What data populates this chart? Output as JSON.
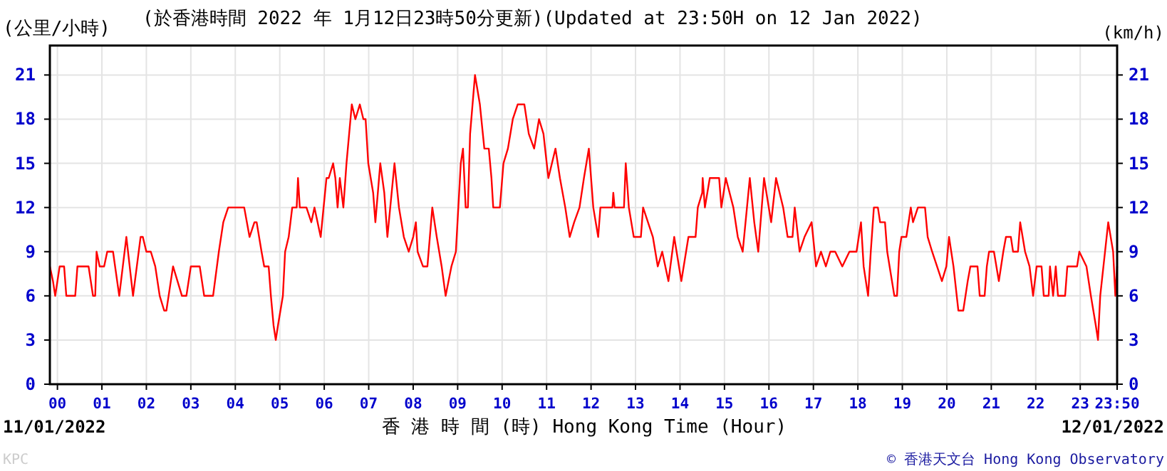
{
  "chart_data": {
    "type": "line",
    "title": "(於香港時間 2022 年 1月12日23時50分更新)(Updated at 23:50H on 12 Jan 2022)",
    "ylabel": "(公里/小時)",
    "y2label": "(km/h)",
    "xlabel": "香 港 時 間 (時)  Hong Kong Time (Hour)",
    "annotations": [
      "11/01/2022",
      "12/01/2022",
      "KPC",
      "© 香港天文台 Hong Kong Observatory"
    ],
    "xlim": [
      -0.17,
      23.83
    ],
    "xticks": [
      {
        "value": 0,
        "label": "00"
      },
      {
        "value": 1,
        "label": "01"
      },
      {
        "value": 2,
        "label": "02"
      },
      {
        "value": 3,
        "label": "03"
      },
      {
        "value": 4,
        "label": "04"
      },
      {
        "value": 5,
        "label": "05"
      },
      {
        "value": 6,
        "label": "06"
      },
      {
        "value": 7,
        "label": "07"
      },
      {
        "value": 8,
        "label": "08"
      },
      {
        "value": 9,
        "label": "09"
      },
      {
        "value": 10,
        "label": "10"
      },
      {
        "value": 11,
        "label": "11"
      },
      {
        "value": 12,
        "label": "12"
      },
      {
        "value": 13,
        "label": "13"
      },
      {
        "value": 14,
        "label": "14"
      },
      {
        "value": 15,
        "label": "15"
      },
      {
        "value": 16,
        "label": "16"
      },
      {
        "value": 17,
        "label": "17"
      },
      {
        "value": 18,
        "label": "18"
      },
      {
        "value": 19,
        "label": "19"
      },
      {
        "value": 20,
        "label": "20"
      },
      {
        "value": 21,
        "label": "21"
      },
      {
        "value": 22,
        "label": "22"
      },
      {
        "value": 23,
        "label": "23"
      },
      {
        "value": 23.83,
        "label": "23:50"
      }
    ],
    "ylim": [
      0,
      23
    ],
    "yticks": [
      0,
      3,
      6,
      9,
      12,
      15,
      18,
      21
    ],
    "y2lim": [
      0,
      23
    ],
    "y2ticks": [
      0,
      3,
      6,
      9,
      12,
      15,
      18,
      21
    ],
    "grid": true,
    "series": [
      {
        "color": "#ff0000",
        "x": [
          -0.17,
          -0.1,
          -0.05,
          0,
          0.05,
          0.15,
          0.2,
          0.4,
          0.45,
          0.7,
          0.75,
          0.8,
          0.85,
          0.88,
          0.95,
          1.05,
          1.12,
          1.25,
          1.39,
          1.55,
          1.7,
          1.87,
          1.92,
          2.0,
          2.1,
          2.2,
          2.3,
          2.4,
          2.45,
          2.5,
          2.6,
          2.8,
          2.9,
          3.0,
          3.2,
          3.3,
          3.5,
          3.63,
          3.73,
          3.84,
          4.2,
          4.32,
          4.43,
          4.48,
          4.59,
          4.65,
          4.75,
          4.8,
          4.86,
          4.91,
          4.96,
          5.07,
          5.12,
          5.2,
          5.28,
          5.38,
          5.41,
          5.45,
          5.6,
          5.71,
          5.78,
          5.92,
          6.05,
          6.1,
          6.2,
          6.25,
          6.3,
          6.35,
          6.43,
          6.5,
          6.62,
          6.7,
          6.8,
          6.88,
          6.93,
          6.99,
          7.1,
          7.15,
          7.26,
          7.35,
          7.42,
          7.58,
          7.68,
          7.79,
          7.9,
          8.0,
          8.06,
          8.1,
          8.22,
          8.32,
          8.43,
          8.53,
          8.64,
          8.73,
          8.86,
          8.96,
          9.07,
          9.12,
          9.18,
          9.23,
          9.28,
          9.39,
          9.5,
          9.6,
          9.7,
          9.76,
          9.8,
          9.95,
          10.03,
          10.13,
          10.24,
          10.35,
          10.5,
          10.6,
          10.72,
          10.83,
          10.93,
          11.04,
          11.2,
          11.3,
          11.42,
          11.52,
          11.62,
          11.74,
          11.84,
          11.95,
          12.05,
          12.16,
          12.21,
          12.27,
          12.48,
          12.5,
          12.53,
          12.74,
          12.78,
          12.85,
          12.96,
          13.12,
          13.17,
          13.28,
          13.39,
          13.5,
          13.6,
          13.74,
          13.87,
          14.03,
          14.19,
          14.35,
          14.4,
          14.5,
          14.51,
          14.56,
          14.67,
          14.88,
          14.93,
          15.03,
          15.2,
          15.3,
          15.41,
          15.57,
          15.67,
          15.76,
          15.89,
          16.05,
          16.16,
          16.32,
          16.42,
          16.53,
          16.58,
          16.69,
          16.8,
          16.96,
          17.06,
          17.17,
          17.28,
          17.38,
          17.49,
          17.65,
          17.81,
          17.97,
          18.07,
          18.13,
          18.23,
          18.29,
          18.36,
          18.45,
          18.5,
          18.61,
          18.66,
          18.82,
          18.88,
          18.93,
          18.98,
          19.09,
          19.19,
          19.24,
          19.35,
          19.51,
          19.57,
          19.67,
          19.78,
          19.89,
          19.99,
          20.05,
          20.1,
          20.15,
          20.26,
          20.37,
          20.47,
          20.53,
          20.69,
          20.74,
          20.85,
          20.9,
          20.95,
          21.06,
          21.17,
          21.27,
          21.33,
          21.44,
          21.49,
          21.6,
          21.65,
          21.76,
          21.86,
          21.94,
          22.02,
          22.13,
          22.18,
          22.29,
          22.32,
          22.39,
          22.45,
          22.5,
          22.66,
          22.71,
          22.93,
          22.98,
          23.14,
          23.24,
          23.35,
          23.4,
          23.45,
          23.63,
          23.74,
          23.79,
          23.83
        ],
        "values": [
          8,
          7,
          6,
          7,
          8,
          8,
          6,
          6,
          8,
          8,
          7,
          6,
          6,
          9,
          8,
          8,
          9,
          9,
          6,
          10,
          6,
          10,
          10,
          9,
          9,
          8,
          6,
          5,
          5,
          6,
          8,
          6,
          6,
          8,
          8,
          6,
          6,
          9,
          11,
          12,
          12,
          10,
          11,
          11,
          9,
          8,
          8,
          6,
          4,
          3,
          4,
          6,
          9,
          10,
          12,
          12,
          14,
          12,
          12,
          11,
          12,
          10,
          14,
          14,
          15,
          14,
          12,
          14,
          12,
          15,
          19,
          18,
          19,
          18,
          18,
          15,
          13,
          11,
          15,
          13,
          10,
          15,
          12,
          10,
          9,
          10,
          11,
          9,
          8,
          8,
          12,
          10,
          8,
          6,
          8,
          9,
          15,
          16,
          12,
          12,
          17,
          21,
          19,
          16,
          16,
          14,
          12,
          12,
          15,
          16,
          18,
          19,
          19,
          17,
          16,
          18,
          17,
          14,
          16,
          14,
          12,
          10,
          11,
          12,
          14,
          16,
          12,
          10,
          12,
          12,
          12,
          13,
          12,
          12,
          15,
          12,
          10,
          10,
          12,
          11,
          10,
          8,
          9,
          7,
          10,
          7,
          10,
          10,
          12,
          13,
          14,
          12,
          14,
          14,
          12,
          14,
          12,
          10,
          9,
          14,
          11,
          9,
          14,
          11,
          14,
          12,
          10,
          10,
          12,
          9,
          10,
          11,
          8,
          9,
          8,
          9,
          9,
          8,
          9,
          9,
          11,
          8,
          6,
          9,
          12,
          12,
          11,
          11,
          9,
          6,
          6,
          9,
          10,
          10,
          12,
          11,
          12,
          12,
          10,
          9,
          8,
          7,
          8,
          10,
          9,
          8,
          5,
          5,
          7,
          8,
          8,
          6,
          6,
          8,
          9,
          9,
          7,
          9,
          10,
          10,
          9,
          9,
          11,
          9,
          8,
          6,
          8,
          8,
          6,
          6,
          8,
          6,
          8,
          6,
          6,
          8,
          8,
          9,
          8,
          6,
          4,
          3,
          6,
          11,
          9,
          6,
          8
        ]
      }
    ]
  }
}
